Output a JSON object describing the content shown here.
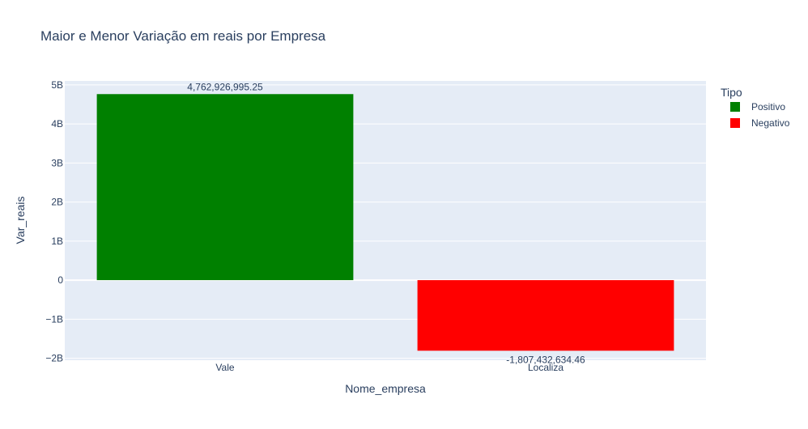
{
  "chart_data": {
    "type": "bar",
    "title": "Maior e Menor Variação em reais por Empresa",
    "xlabel": "Nome_empresa",
    "ylabel": "Var_reais",
    "categories": [
      "Vale",
      "Localiza"
    ],
    "ylim": [
      -2.05,
      5.1
    ],
    "yticks": [
      {
        "value": 5,
        "label": "5B"
      },
      {
        "value": 4,
        "label": "4B"
      },
      {
        "value": 3,
        "label": "3B"
      },
      {
        "value": 2,
        "label": "2B"
      },
      {
        "value": 1,
        "label": "1B"
      },
      {
        "value": 0,
        "label": "0"
      },
      {
        "value": -1,
        "label": "−1B"
      },
      {
        "value": -2,
        "label": "−2B"
      }
    ],
    "series": [
      {
        "name": "Positivo",
        "color": "#008000",
        "category": "Vale",
        "value": 4762926995.25,
        "label": "4,762,926,995.25"
      },
      {
        "name": "Negativo",
        "color": "#ff0000",
        "category": "Localiza",
        "value": -1807432634.46,
        "label": "-1,807,432,634.46"
      }
    ],
    "legend": {
      "title": "Tipo",
      "placement": "top-right"
    },
    "grid": true,
    "plot_background": "#e5ecf6"
  }
}
